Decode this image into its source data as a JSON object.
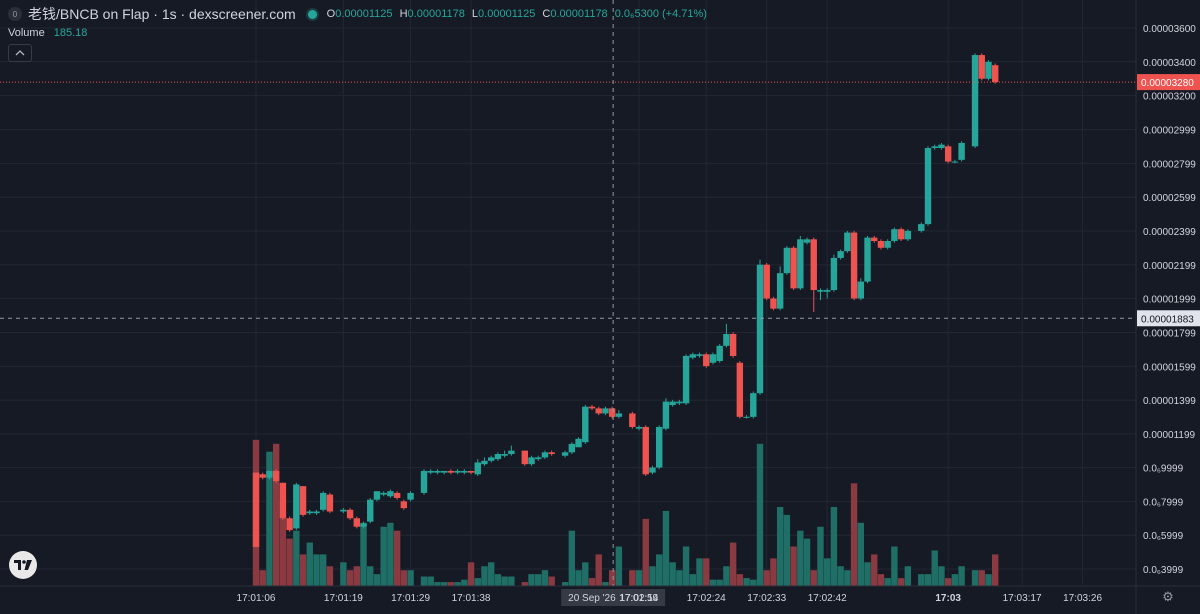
{
  "legend": {
    "pair_icon": "0",
    "title": "老钱/BNCB on Flap · 1s · dexscreener.com",
    "o_label": "O",
    "o": "0.00001125",
    "h_label": "H",
    "h": "0.00001178",
    "l_label": "L",
    "l": "0.00001125",
    "c_label": "C",
    "c": "0.00001178",
    "change": "0.0₆5300 (+4.71%)"
  },
  "volume_legend": {
    "label": "Volume",
    "value": "185.18"
  },
  "colors": {
    "background": "#161a25",
    "up": "#26a69a",
    "down": "#ef5350",
    "up_volume": "#1f6f66",
    "down_volume": "#8a3a40",
    "grid": "#232732"
  },
  "icons": {
    "collapse": "chevron-up-icon",
    "logo": "tradingview-logo-icon",
    "settings": "gear-icon"
  },
  "crosshair": {
    "price_label": "0.00001883",
    "time_label": "20 Sep '26",
    "time_value": "17:01:59"
  },
  "last_price_label": "0.00003280",
  "chart_data": {
    "type": "candlestick",
    "price_ticks": [
      "0.00003600",
      "0.00003400",
      "0.00003200",
      "0.00002999",
      "0.00002799",
      "0.00002599",
      "0.00002399",
      "0.00002199",
      "0.00001999",
      "0.00001799",
      "0.00001599",
      "0.00001399",
      "0.00001199",
      "0.0₆9999",
      "0.0₆7999",
      "0.0₆5999",
      "0.0₆3999"
    ],
    "price_tick_values": [
      3.6e-05,
      3.4e-05,
      3.2e-05,
      2.999e-05,
      2.799e-05,
      2.599e-05,
      2.399e-05,
      2.199e-05,
      1.999e-05,
      1.799e-05,
      1.599e-05,
      1.399e-05,
      1.199e-05,
      9.999e-06,
      7.999e-06,
      5.999e-06,
      3.999e-06
    ],
    "time_ticks": [
      {
        "label": "17:01:06",
        "t": 0
      },
      {
        "label": "17:01:19",
        "t": 13
      },
      {
        "label": "17:01:29",
        "t": 23
      },
      {
        "label": "17:01:38",
        "t": 32
      },
      {
        "label": "17:02:14",
        "t": 57
      },
      {
        "label": "17:02:24",
        "t": 67
      },
      {
        "label": "17:02:33",
        "t": 76
      },
      {
        "label": "17:02:42",
        "t": 85
      },
      {
        "label": "17:03",
        "t": 103
      },
      {
        "label": "17:03:17",
        "t": 114
      },
      {
        "label": "17:03:26",
        "t": 123
      }
    ],
    "time_start": "17:01:06",
    "candles": [
      [
        0,
        9.7e-06,
        5.3e-06,
        9.7e-06,
        5.3e-06
      ],
      [
        1,
        9.6e-06,
        9.4e-06,
        9.7e-06,
        9.3e-06
      ],
      [
        2,
        9.4e-06,
        9.8e-06,
        9.8e-06,
        9.3e-06
      ],
      [
        3,
        9.8e-06,
        9.2e-06,
        9.9e-06,
        9.1e-06
      ],
      [
        4,
        9.1e-06,
        7e-06,
        9.1e-06,
        6.9e-06
      ],
      [
        5,
        7e-06,
        6.3e-06,
        7.1e-06,
        6.2e-06
      ],
      [
        6,
        6.4e-06,
        9e-06,
        9.1e-06,
        6.3e-06
      ],
      [
        7,
        8.9e-06,
        7.2e-06,
        8.9e-06,
        7.1e-06
      ],
      [
        8,
        7.3e-06,
        7.4e-06,
        7.5e-06,
        7.2e-06
      ],
      [
        9,
        7.3e-06,
        7.4e-06,
        7.5e-06,
        7.2e-06
      ],
      [
        10,
        7.5e-06,
        8.5e-06,
        8.6e-06,
        7.4e-06
      ],
      [
        11,
        8.4e-06,
        7.4e-06,
        8.5e-06,
        7.3e-06
      ],
      [
        13,
        7.4e-06,
        7.5e-06,
        7.6e-06,
        7.3e-06
      ],
      [
        14,
        7.5e-06,
        7e-06,
        7.6e-06,
        6.9e-06
      ],
      [
        15,
        7e-06,
        6.5e-06,
        7.1e-06,
        6.4e-06
      ],
      [
        16,
        6.5e-06,
        6.7e-06,
        6.8e-06,
        6.4e-06
      ],
      [
        17,
        6.8e-06,
        8.1e-06,
        8.2e-06,
        6.7e-06
      ],
      [
        18,
        8.1e-06,
        8.6e-06,
        8.6e-06,
        8e-06
      ],
      [
        19,
        8.4e-06,
        8.5e-06,
        8.6e-06,
        8.3e-06
      ],
      [
        20,
        8.3e-06,
        8.6e-06,
        8.7e-06,
        8.2e-06
      ],
      [
        21,
        8.5e-06,
        8.2e-06,
        8.6e-06,
        8.1e-06
      ],
      [
        22,
        8e-06,
        7.6e-06,
        8.1e-06,
        7.5e-06
      ],
      [
        23,
        8.1e-06,
        8.5e-06,
        8.6e-06,
        8e-06
      ],
      [
        25,
        8.5e-06,
        9.8e-06,
        9.9e-06,
        8.4e-06
      ],
      [
        26,
        9.7e-06,
        9.8e-06,
        9.9e-06,
        9.6e-06
      ],
      [
        27,
        9.7e-06,
        9.8e-06,
        9.9e-06,
        9.6e-06
      ],
      [
        28,
        9.7e-06,
        9.8e-06,
        9.8e-06,
        9.6e-06
      ],
      [
        29,
        9.8e-06,
        9.7e-06,
        9.9e-06,
        9.6e-06
      ],
      [
        30,
        9.7e-06,
        9.8e-06,
        9.9e-06,
        9.6e-06
      ],
      [
        31,
        9.7e-06,
        9.8e-06,
        9.9e-06,
        9.6e-06
      ],
      [
        32,
        9.8e-06,
        9.7e-06,
        9.8e-06,
        9.6e-06
      ],
      [
        33,
        9.6e-06,
        1.03e-05,
        1.05e-05,
        9.5e-06
      ],
      [
        34,
        1.02e-05,
        1.04e-05,
        1.06e-05,
        1.01e-05
      ],
      [
        35,
        1.04e-05,
        1.06e-05,
        1.07e-05,
        1.03e-05
      ],
      [
        36,
        1.05e-05,
        1.08e-05,
        1.09e-05,
        1.04e-05
      ],
      [
        37,
        1.07e-05,
        1.08e-05,
        1.1e-05,
        1.06e-05
      ],
      [
        38,
        1.08e-05,
        1.1e-05,
        1.13e-05,
        1.07e-05
      ],
      [
        40,
        1.1e-05,
        1.02e-05,
        1.1e-05,
        1.01e-05
      ],
      [
        41,
        1.02e-05,
        1.06e-05,
        1.07e-05,
        1.01e-05
      ],
      [
        42,
        1.05e-05,
        1.06e-05,
        1.07e-05,
        1.04e-05
      ],
      [
        43,
        1.06e-05,
        1.09e-05,
        1.1e-05,
        1.05e-05
      ],
      [
        44,
        1.09e-05,
        1.08e-05,
        1.1e-05,
        1.07e-05
      ],
      [
        46,
        1.07e-05,
        1.09e-05,
        1.1e-05,
        1.06e-05
      ],
      [
        47,
        1.09e-05,
        1.14e-05,
        1.15e-05,
        1.08e-05
      ],
      [
        48,
        1.12e-05,
        1.17e-05,
        1.18e-05,
        1.12e-05
      ],
      [
        49,
        1.15e-05,
        1.36e-05,
        1.37e-05,
        1.14e-05
      ],
      [
        50,
        1.36e-05,
        1.35e-05,
        1.37e-05,
        1.34e-05
      ],
      [
        51,
        1.35e-05,
        1.32e-05,
        1.36e-05,
        1.31e-05
      ],
      [
        52,
        1.32e-05,
        1.35e-05,
        1.36e-05,
        1.31e-05
      ],
      [
        53,
        1.35e-05,
        1.3e-05,
        1.36e-05,
        1.29e-05
      ],
      [
        54,
        1.3e-05,
        1.32e-05,
        1.34e-05,
        1.29e-05
      ],
      [
        56,
        1.32e-05,
        1.24e-05,
        1.33e-05,
        1.23e-05
      ],
      [
        57,
        1.23e-05,
        1.24e-05,
        1.25e-05,
        1.22e-05
      ],
      [
        58,
        1.24e-05,
        9.6e-06,
        1.25e-05,
        9.5e-06
      ],
      [
        59,
        9.7e-06,
        1e-05,
        1.01e-05,
        9.6e-06
      ],
      [
        60,
        1e-05,
        1.24e-05,
        1.25e-05,
        9.9e-06
      ],
      [
        61,
        1.23e-05,
        1.39e-05,
        1.41e-05,
        1.22e-05
      ],
      [
        62,
        1.37e-05,
        1.39e-05,
        1.4e-05,
        1.36e-05
      ],
      [
        63,
        1.38e-05,
        1.39e-05,
        1.4e-05,
        1.37e-05
      ],
      [
        64,
        1.38e-05,
        1.66e-05,
        1.67e-05,
        1.37e-05
      ],
      [
        65,
        1.65e-05,
        1.67e-05,
        1.68e-05,
        1.64e-05
      ],
      [
        66,
        1.66e-05,
        1.67e-05,
        1.68e-05,
        1.65e-05
      ],
      [
        67,
        1.67e-05,
        1.6e-05,
        1.68e-05,
        1.59e-05
      ],
      [
        68,
        1.62e-05,
        1.67e-05,
        1.68e-05,
        1.61e-05
      ],
      [
        69,
        1.63e-05,
        1.72e-05,
        1.73e-05,
        1.62e-05
      ],
      [
        70,
        1.72e-05,
        1.79e-05,
        1.85e-05,
        1.71e-05
      ],
      [
        71,
        1.79e-05,
        1.66e-05,
        1.8e-05,
        1.65e-05
      ],
      [
        72,
        1.62e-05,
        1.3e-05,
        1.63e-05,
        1.29e-05
      ],
      [
        73,
        1.3e-05,
        1.3e-05,
        1.31e-05,
        1.29e-05
      ],
      [
        74,
        1.3e-05,
        1.44e-05,
        1.45e-05,
        1.29e-05
      ],
      [
        75,
        1.44e-05,
        2.2e-05,
        2.23e-05,
        1.43e-05
      ],
      [
        76,
        2.2e-05,
        2e-05,
        2.21e-05,
        1.99e-05
      ],
      [
        77,
        2e-05,
        1.94e-05,
        2.01e-05,
        1.93e-05
      ],
      [
        78,
        1.94e-05,
        2.15e-05,
        2.19e-05,
        1.93e-05
      ],
      [
        79,
        2.15e-05,
        2.3e-05,
        2.31e-05,
        2.14e-05
      ],
      [
        80,
        2.3e-05,
        2.06e-05,
        2.31e-05,
        2.05e-05
      ],
      [
        81,
        2.06e-05,
        2.35e-05,
        2.37e-05,
        2.05e-05
      ],
      [
        82,
        2.33e-05,
        2.35e-05,
        2.36e-05,
        2.32e-05
      ],
      [
        83,
        2.35e-05,
        2.05e-05,
        2.36e-05,
        1.92e-05
      ],
      [
        84,
        2.04e-05,
        2.05e-05,
        2.06e-05,
        1.99e-05
      ],
      [
        85,
        2.04e-05,
        2.05e-05,
        2.06e-05,
        2e-05
      ],
      [
        86,
        2.05e-05,
        2.24e-05,
        2.26e-05,
        2.04e-05
      ],
      [
        87,
        2.24e-05,
        2.28e-05,
        2.29e-05,
        2.23e-05
      ],
      [
        88,
        2.28e-05,
        2.39e-05,
        2.4e-05,
        2.27e-05
      ],
      [
        89,
        2.39e-05,
        2e-05,
        2.4e-05,
        1.99e-05
      ],
      [
        90,
        2e-05,
        2.1e-05,
        2.12e-05,
        1.99e-05
      ],
      [
        91,
        2.1e-05,
        2.36e-05,
        2.37e-05,
        2.09e-05
      ],
      [
        92,
        2.36e-05,
        2.34e-05,
        2.37e-05,
        2.33e-05
      ],
      [
        93,
        2.34e-05,
        2.3e-05,
        2.35e-05,
        2.29e-05
      ],
      [
        94,
        2.3e-05,
        2.34e-05,
        2.35e-05,
        2.29e-05
      ],
      [
        95,
        2.34e-05,
        2.41e-05,
        2.42e-05,
        2.33e-05
      ],
      [
        96,
        2.41e-05,
        2.35e-05,
        2.42e-05,
        2.34e-05
      ],
      [
        97,
        2.35e-05,
        2.4e-05,
        2.41e-05,
        2.34e-05
      ],
      [
        99,
        2.4e-05,
        2.44e-05,
        2.45e-05,
        2.39e-05
      ],
      [
        100,
        2.44e-05,
        2.89e-05,
        2.9e-05,
        2.43e-05
      ],
      [
        101,
        2.89e-05,
        2.9e-05,
        2.91e-05,
        2.88e-05
      ],
      [
        102,
        2.89e-05,
        2.91e-05,
        2.92e-05,
        2.88e-05
      ],
      [
        103,
        2.9e-05,
        2.81e-05,
        2.91e-05,
        2.8e-05
      ],
      [
        104,
        2.81e-05,
        2.81e-05,
        2.82e-05,
        2.8e-05
      ],
      [
        105,
        2.82e-05,
        2.92e-05,
        2.93e-05,
        2.81e-05
      ],
      [
        107,
        2.9e-05,
        3.44e-05,
        3.45e-05,
        2.89e-05
      ],
      [
        108,
        3.44e-05,
        3.3e-05,
        3.45e-05,
        3.29e-05
      ],
      [
        109,
        3.3e-05,
        3.4e-05,
        3.41e-05,
        3.29e-05
      ],
      [
        110,
        3.38e-05,
        3.28e-05,
        3.39e-05,
        3.27e-05
      ]
    ],
    "volumes": [
      [
        0,
        185
      ],
      [
        1,
        20
      ],
      [
        2,
        170
      ],
      [
        3,
        180
      ],
      [
        4,
        110
      ],
      [
        5,
        60
      ],
      [
        6,
        70
      ],
      [
        7,
        40
      ],
      [
        8,
        55
      ],
      [
        9,
        40
      ],
      [
        10,
        40
      ],
      [
        11,
        25
      ],
      [
        13,
        30
      ],
      [
        14,
        20
      ],
      [
        15,
        25
      ],
      [
        16,
        80
      ],
      [
        17,
        25
      ],
      [
        18,
        15
      ],
      [
        19,
        75
      ],
      [
        20,
        80
      ],
      [
        21,
        70
      ],
      [
        22,
        20
      ],
      [
        23,
        20
      ],
      [
        25,
        12
      ],
      [
        26,
        12
      ],
      [
        27,
        5
      ],
      [
        28,
        5
      ],
      [
        29,
        5
      ],
      [
        30,
        5
      ],
      [
        31,
        8
      ],
      [
        32,
        30
      ],
      [
        33,
        10
      ],
      [
        34,
        25
      ],
      [
        35,
        30
      ],
      [
        36,
        15
      ],
      [
        37,
        12
      ],
      [
        38,
        12
      ],
      [
        40,
        5
      ],
      [
        41,
        15
      ],
      [
        42,
        15
      ],
      [
        43,
        20
      ],
      [
        44,
        12
      ],
      [
        46,
        5
      ],
      [
        47,
        70
      ],
      [
        48,
        20
      ],
      [
        49,
        30
      ],
      [
        50,
        10
      ],
      [
        51,
        40
      ],
      [
        52,
        5
      ],
      [
        53,
        20
      ],
      [
        54,
        50
      ],
      [
        56,
        20
      ],
      [
        57,
        20
      ],
      [
        58,
        85
      ],
      [
        59,
        25
      ],
      [
        60,
        40
      ],
      [
        61,
        95
      ],
      [
        62,
        30
      ],
      [
        63,
        20
      ],
      [
        64,
        50
      ],
      [
        65,
        15
      ],
      [
        66,
        35
      ],
      [
        67,
        35
      ],
      [
        68,
        8
      ],
      [
        69,
        8
      ],
      [
        70,
        25
      ],
      [
        71,
        55
      ],
      [
        72,
        15
      ],
      [
        73,
        10
      ],
      [
        74,
        8
      ],
      [
        75,
        180
      ],
      [
        76,
        20
      ],
      [
        77,
        35
      ],
      [
        78,
        100
      ],
      [
        79,
        90
      ],
      [
        80,
        50
      ],
      [
        81,
        70
      ],
      [
        82,
        60
      ],
      [
        83,
        20
      ],
      [
        84,
        75
      ],
      [
        85,
        35
      ],
      [
        86,
        100
      ],
      [
        87,
        25
      ],
      [
        88,
        20
      ],
      [
        89,
        130
      ],
      [
        90,
        80
      ],
      [
        91,
        30
      ],
      [
        92,
        40
      ],
      [
        93,
        15
      ],
      [
        94,
        10
      ],
      [
        95,
        50
      ],
      [
        96,
        10
      ],
      [
        97,
        25
      ],
      [
        99,
        15
      ],
      [
        100,
        15
      ],
      [
        101,
        45
      ],
      [
        102,
        25
      ],
      [
        103,
        10
      ],
      [
        104,
        15
      ],
      [
        105,
        25
      ],
      [
        107,
        20
      ],
      [
        108,
        20
      ],
      [
        109,
        15
      ],
      [
        110,
        40
      ]
    ]
  }
}
